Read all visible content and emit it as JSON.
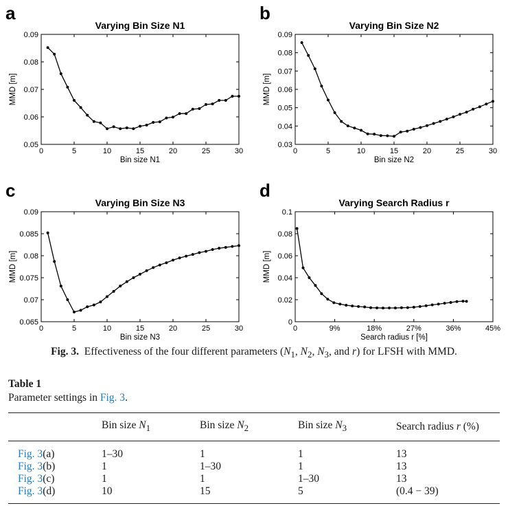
{
  "figure": {
    "caption_label": "Fig. 3.",
    "caption_text": "Effectiveness of the four different parameters (N1, N2, N3, and r) for LFSH with MMD.",
    "caption_parts": {
      "pre": "Effectiveness of the four different parameters (",
      "n1": "N",
      "n1_sub": "1",
      "sep1": ", ",
      "n2": "N",
      "n2_sub": "2",
      "sep2": ", ",
      "n3": "N",
      "n3_sub": "3",
      "sep3": ", and ",
      "r": "r",
      "post": ") for LFSH with MMD."
    }
  },
  "chart_data": [
    {
      "panel": "a",
      "type": "line",
      "title": "Varying Bin Size N1",
      "xlabel": "Bin size N1",
      "ylabel": "MMD [m]",
      "xlim": [
        0,
        30
      ],
      "ylim": [
        0.05,
        0.09
      ],
      "xticks": [
        "0",
        "5",
        "10",
        "15",
        "20",
        "25",
        "30"
      ],
      "yticks": [
        "0.05",
        "0.06",
        "0.07",
        "0.08",
        "0.09"
      ],
      "x": [
        1,
        2,
        3,
        4,
        5,
        6,
        7,
        8,
        9,
        10,
        11,
        12,
        13,
        14,
        15,
        16,
        17,
        18,
        19,
        20,
        21,
        22,
        23,
        24,
        25,
        26,
        27,
        28,
        29,
        30
      ],
      "y": [
        0.0852,
        0.0828,
        0.0757,
        0.0708,
        0.066,
        0.0634,
        0.0606,
        0.0583,
        0.0578,
        0.0557,
        0.0564,
        0.0557,
        0.056,
        0.0557,
        0.0566,
        0.057,
        0.058,
        0.0582,
        0.0596,
        0.0599,
        0.0612,
        0.0612,
        0.0628,
        0.063,
        0.0645,
        0.0647,
        0.066,
        0.066,
        0.0675,
        0.0675
      ]
    },
    {
      "panel": "b",
      "type": "line",
      "title": "Varying Bin Size N2",
      "xlabel": "Bin size N2",
      "ylabel": "MMD [m]",
      "xlim": [
        0,
        30
      ],
      "ylim": [
        0.03,
        0.09
      ],
      "xticks": [
        "0",
        "5",
        "10",
        "15",
        "20",
        "25",
        "30"
      ],
      "yticks": [
        "0.03",
        "0.04",
        "0.05",
        "0.06",
        "0.07",
        "0.08",
        "0.09"
      ],
      "x": [
        1,
        2,
        3,
        4,
        5,
        6,
        7,
        8,
        9,
        10,
        11,
        12,
        13,
        14,
        15,
        16,
        17,
        18,
        19,
        20,
        21,
        22,
        23,
        24,
        25,
        26,
        27,
        28,
        29,
        30
      ],
      "y": [
        0.0855,
        0.0785,
        0.0712,
        0.0618,
        0.0542,
        0.0473,
        0.0425,
        0.0401,
        0.0389,
        0.0377,
        0.0357,
        0.0356,
        0.0348,
        0.0347,
        0.0344,
        0.0367,
        0.0372,
        0.0383,
        0.0392,
        0.0402,
        0.0414,
        0.0425,
        0.0438,
        0.045,
        0.0464,
        0.0476,
        0.0492,
        0.0505,
        0.052,
        0.0535
      ]
    },
    {
      "panel": "c",
      "type": "line",
      "title": "Varying Bin Size N3",
      "xlabel": "Bin size N3",
      "ylabel": "MMD [m]",
      "xlim": [
        0,
        30
      ],
      "ylim": [
        0.065,
        0.09
      ],
      "xticks": [
        "0",
        "5",
        "10",
        "15",
        "20",
        "25",
        "30"
      ],
      "yticks": [
        "0.065",
        "0.07",
        "0.075",
        "0.08",
        "0.085",
        "0.09"
      ],
      "x": [
        1,
        2,
        3,
        4,
        5,
        6,
        7,
        8,
        9,
        10,
        11,
        12,
        13,
        14,
        15,
        16,
        17,
        18,
        19,
        20,
        21,
        22,
        23,
        24,
        25,
        26,
        27,
        28,
        29,
        30
      ],
      "y": [
        0.0852,
        0.0787,
        0.0731,
        0.07,
        0.0672,
        0.0676,
        0.0684,
        0.0688,
        0.0695,
        0.0707,
        0.0719,
        0.0731,
        0.0741,
        0.075,
        0.0758,
        0.0766,
        0.0773,
        0.0779,
        0.0784,
        0.079,
        0.0795,
        0.0799,
        0.0803,
        0.0807,
        0.081,
        0.0814,
        0.0817,
        0.0819,
        0.0821,
        0.0823
      ]
    },
    {
      "panel": "d",
      "type": "line",
      "title": "Varying Search Radius r",
      "xlabel": "Search radius r [%]",
      "ylabel": "MMD [m]",
      "xlim": [
        0,
        45
      ],
      "ylim": [
        0,
        0.1
      ],
      "xticks": [
        "0",
        "9%",
        "18%",
        "27%",
        "36%",
        "45%"
      ],
      "yticks": [
        "0",
        "0.02",
        "0.04",
        "0.06",
        "0.08",
        "0.1"
      ],
      "x": [
        0.4,
        1.8,
        3.2,
        4.6,
        6.0,
        7.4,
        8.8,
        10.2,
        11.6,
        13,
        14.4,
        15.8,
        17.2,
        18.6,
        20,
        21.4,
        22.8,
        24.2,
        25.6,
        27,
        28.4,
        29.8,
        31.2,
        32.6,
        34,
        35.4,
        36.8,
        38.2,
        39
      ],
      "y": [
        0.0848,
        0.049,
        0.04,
        0.033,
        0.0255,
        0.0205,
        0.0173,
        0.016,
        0.015,
        0.0143,
        0.0138,
        0.0134,
        0.0127,
        0.0126,
        0.0124,
        0.0125,
        0.0125,
        0.0127,
        0.0128,
        0.0132,
        0.0138,
        0.0145,
        0.0153,
        0.016,
        0.0168,
        0.0175,
        0.0183,
        0.0187,
        0.0185
      ]
    }
  ],
  "table": {
    "label": "Table 1",
    "caption_pre": "Parameter settings in ",
    "caption_link": "Fig. 3",
    "caption_post": ".",
    "headers": [
      {
        "text": "",
        "var": "",
        "sub": ""
      },
      {
        "text": "Bin size ",
        "var": "N",
        "sub": "1"
      },
      {
        "text": "Bin size ",
        "var": "N",
        "sub": "2"
      },
      {
        "text": "Bin size ",
        "var": "N",
        "sub": "3"
      },
      {
        "text": "Search radius ",
        "var": "r",
        "sub": "",
        "suffix": " (%)"
      }
    ],
    "rows": [
      {
        "link": "Fig. 3",
        "panel": "(a)",
        "cells": [
          "1–30",
          "1",
          "1",
          "13"
        ]
      },
      {
        "link": "Fig. 3",
        "panel": "(b)",
        "cells": [
          "1",
          "1–30",
          "1",
          "13"
        ]
      },
      {
        "link": "Fig. 3",
        "panel": "(c)",
        "cells": [
          "1",
          "1",
          "1–30",
          "13"
        ]
      },
      {
        "link": "Fig. 3",
        "panel": "(d)",
        "cells": [
          "10",
          "15",
          "5",
          "(0.4 − 39)"
        ]
      }
    ]
  }
}
